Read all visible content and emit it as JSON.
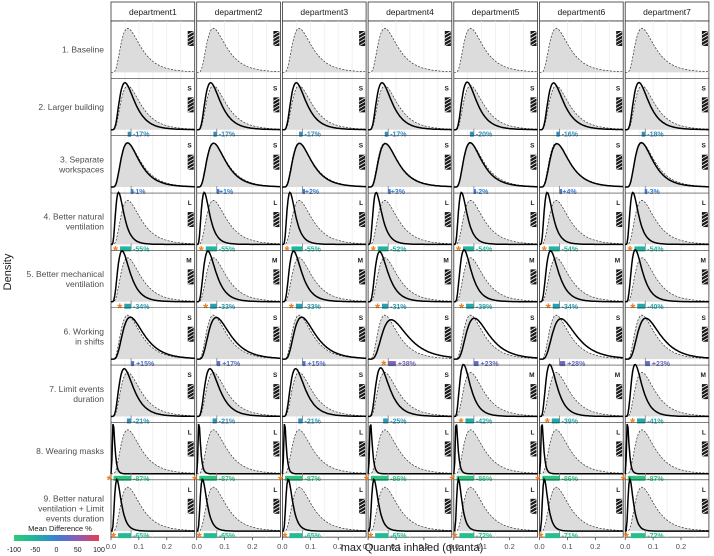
{
  "chart_data": {
    "type": "density",
    "title": "",
    "xlabel": "max Quanta inhaled (quanta)",
    "ylabel": "Density",
    "xlim": [
      0,
      0.3
    ],
    "x_ticks": [
      "0.0",
      "0.1",
      "0.2"
    ],
    "x_tick_values": [
      0,
      0.1,
      0.2
    ],
    "columns": [
      "department1",
      "department2",
      "department3",
      "department4",
      "department5",
      "department6",
      "department7"
    ],
    "rows": [
      "1. Baseline",
      "2. Larger building",
      "3. Separate workspaces",
      "4. Better natural ventilation",
      "5. Better mechanical ventilation",
      "6. Working in shifts",
      "7. Limit events duration",
      "8. Wearing masks",
      "9. Better natural ventilation + Limit events duration"
    ],
    "baseline_mode": [
      0.06,
      0.06,
      0.06,
      0.06,
      0.06,
      0.06,
      0.06
    ],
    "mean_difference_pct": [
      [
        0,
        0,
        0,
        0,
        0,
        0,
        0
      ],
      [
        -17,
        -17,
        -17,
        -17,
        -20,
        -16,
        -18
      ],
      [
        -1,
        1,
        2,
        3,
        -2,
        4,
        -3
      ],
      [
        -55,
        -55,
        -55,
        -52,
        -54,
        -54,
        -54
      ],
      [
        -34,
        -33,
        -33,
        -31,
        -39,
        -34,
        -40
      ],
      [
        15,
        17,
        15,
        38,
        23,
        28,
        23
      ],
      [
        -21,
        -21,
        -21,
        -25,
        -42,
        -39,
        -41
      ],
      [
        -87,
        -87,
        -87,
        -86,
        -86,
        -86,
        -87
      ],
      [
        -65,
        -65,
        -65,
        -65,
        -72,
        -71,
        -72
      ]
    ],
    "labels": [
      [
        "",
        "",
        "",
        "",
        "",
        "",
        ""
      ],
      [
        "-17%",
        "-17%",
        "-17%",
        "-17%",
        "-20%",
        "-16%",
        "-18%"
      ],
      [
        "-1%",
        "+1%",
        "+2%",
        "+3%",
        "-2%",
        "+4%",
        "-3%"
      ],
      [
        "-55%",
        "-55%",
        "-55%",
        "-52%",
        "-54%",
        "-54%",
        "-54%"
      ],
      [
        "-34%",
        "-33%",
        "-33%",
        "-31%",
        "-39%",
        "-34%",
        "-40%"
      ],
      [
        "+15%",
        "+17%",
        "+15%",
        "+38%",
        "+23%",
        "+28%",
        "+23%"
      ],
      [
        "-21%",
        "-21%",
        "-21%",
        "-25%",
        "-42%",
        "-39%",
        "-41%"
      ],
      [
        "-87%",
        "-87%",
        "-87%",
        "-86%",
        "-86%",
        "-86%",
        "-87%"
      ],
      [
        "-65%",
        "-65%",
        "-65%",
        "-65%",
        "-72%",
        "-71%",
        "-72%"
      ]
    ],
    "asterisk": [
      [
        false,
        false,
        false,
        false,
        false,
        false,
        false
      ],
      [
        false,
        false,
        false,
        false,
        false,
        false,
        false
      ],
      [
        false,
        false,
        false,
        false,
        false,
        false,
        false
      ],
      [
        true,
        true,
        true,
        true,
        true,
        true,
        true
      ],
      [
        true,
        true,
        true,
        true,
        true,
        true,
        true
      ],
      [
        false,
        false,
        false,
        true,
        false,
        false,
        false
      ],
      [
        false,
        false,
        false,
        false,
        true,
        true,
        true
      ],
      [
        true,
        true,
        true,
        true,
        true,
        true,
        true
      ],
      [
        true,
        true,
        true,
        true,
        true,
        true,
        true
      ]
    ],
    "size_category": [
      [
        "",
        "",
        "",
        "",
        "",
        "",
        ""
      ],
      [
        "S",
        "S",
        "S",
        "S",
        "S",
        "S",
        "S"
      ],
      [
        "S",
        "S",
        "S",
        "S",
        "S",
        "S",
        "S"
      ],
      [
        "L",
        "L",
        "L",
        "L",
        "L",
        "L",
        "L"
      ],
      [
        "M",
        "M",
        "M",
        "M",
        "M",
        "M",
        "M"
      ],
      [
        "S",
        "S",
        "S",
        "S",
        "S",
        "S",
        "S"
      ],
      [
        "S",
        "S",
        "S",
        "S",
        "M",
        "M",
        "M"
      ],
      [
        "L",
        "L",
        "L",
        "L",
        "L",
        "L",
        "L"
      ],
      [
        "L",
        "L",
        "L",
        "L",
        "L",
        "L",
        "L"
      ]
    ],
    "legend": {
      "title": "Mean Difference %",
      "ticks": [
        "-100",
        "-50",
        "0",
        "50",
        "100"
      ],
      "range": [
        -100,
        100
      ],
      "colors": [
        "#2ecc71",
        "#1fb3a3",
        "#3b7fd4",
        "#8e5bb5",
        "#e83e4f"
      ]
    }
  }
}
